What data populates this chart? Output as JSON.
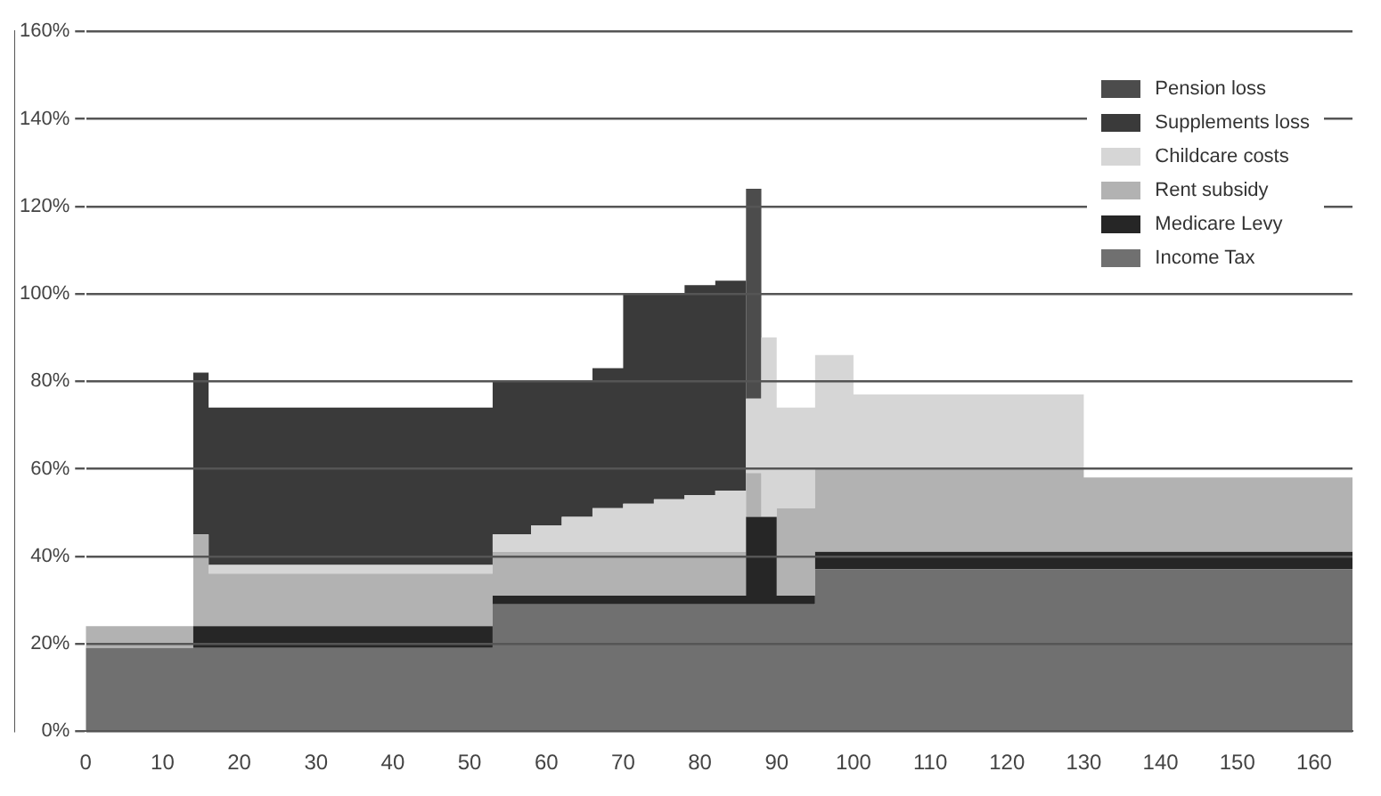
{
  "chart_data": {
    "type": "area",
    "stacked": true,
    "grid": "y",
    "legend": "top right",
    "x": [
      0,
      14,
      16,
      53,
      58,
      62,
      66,
      70,
      74,
      78,
      82,
      86,
      88,
      90,
      95,
      100,
      130,
      165
    ],
    "xlim": [
      0,
      165
    ],
    "xticks": [
      0,
      10,
      20,
      30,
      40,
      50,
      60,
      70,
      80,
      90,
      100,
      110,
      120,
      130,
      140,
      150,
      160
    ],
    "ylim": [
      0,
      160
    ],
    "yticks": [
      {
        "value": 0,
        "label": "0%"
      },
      {
        "value": 20,
        "label": "20%"
      },
      {
        "value": 40,
        "label": "40%"
      },
      {
        "value": 60,
        "label": "60%"
      },
      {
        "value": 80,
        "label": "80%"
      },
      {
        "value": 100,
        "label": "100%"
      },
      {
        "value": 120,
        "label": "120%"
      },
      {
        "value": 140,
        "label": "140%"
      },
      {
        "value": 160,
        "label": "160%"
      }
    ],
    "series": [
      {
        "name": "Income Tax",
        "color": "#707070",
        "values": [
          19,
          19,
          19,
          29,
          29,
          29,
          29,
          29,
          29,
          29,
          29,
          29,
          29,
          29,
          37,
          37,
          37,
          37
        ]
      },
      {
        "name": "Medicare Levy",
        "color": "#262626",
        "values": [
          0,
          5,
          5,
          2,
          2,
          2,
          2,
          2,
          2,
          2,
          2,
          20,
          20,
          2,
          4,
          4,
          4,
          4
        ]
      },
      {
        "name": "Rent subsidy",
        "color": "#b2b2b2",
        "values": [
          5,
          21,
          12,
          10,
          10,
          10,
          10,
          10,
          10,
          10,
          10,
          10,
          0,
          20,
          19,
          19,
          17,
          17
        ]
      },
      {
        "name": "Childcare costs",
        "color": "#d6d6d6",
        "values": [
          0,
          0,
          2,
          4,
          6,
          8,
          10,
          11,
          12,
          13,
          14,
          17,
          41,
          23,
          26,
          17,
          0,
          0
        ]
      },
      {
        "name": "Supplements loss",
        "color": "#3a3a3a",
        "values": [
          0,
          37,
          36,
          35,
          33,
          31,
          32,
          48,
          47,
          48,
          48,
          0,
          0,
          0,
          0,
          0,
          0,
          0
        ]
      },
      {
        "name": "Pension loss",
        "color": "#4c4c4c",
        "values": [
          0,
          0,
          0,
          0,
          0,
          0,
          0,
          0,
          0,
          0,
          0,
          48,
          0,
          0,
          0,
          0,
          0,
          0
        ]
      }
    ]
  }
}
